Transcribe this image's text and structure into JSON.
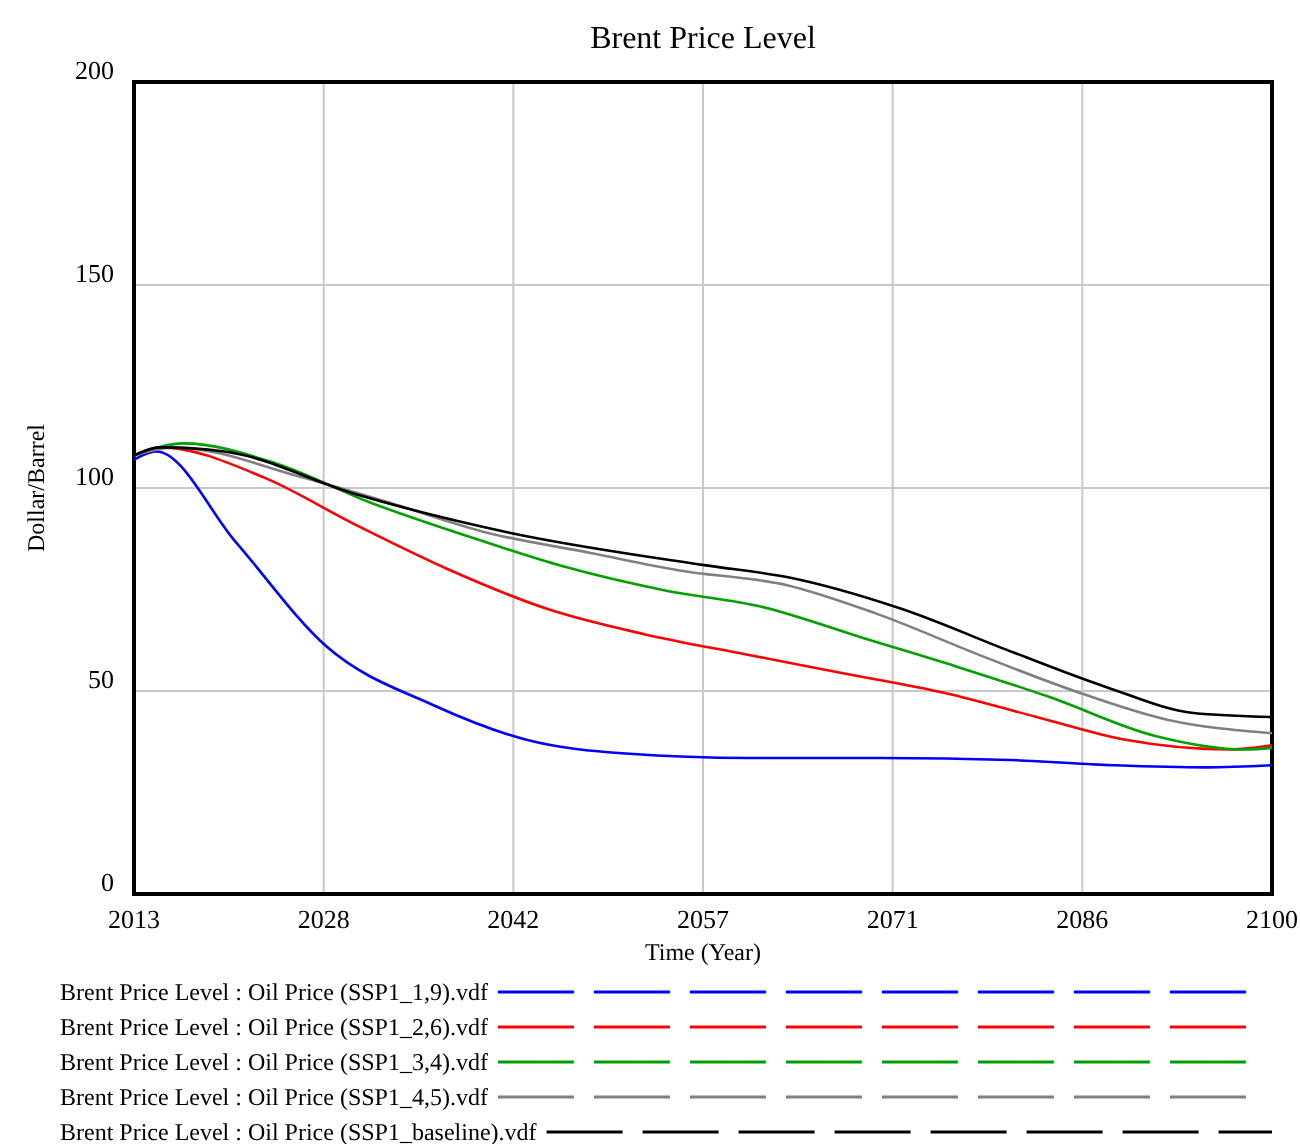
{
  "chart_data": {
    "type": "line",
    "title": "Brent Price Level",
    "xlabel": "Time (Year)",
    "ylabel": "Dollar/Barrel",
    "xlim": [
      2013,
      2100
    ],
    "ylim": [
      0,
      200
    ],
    "xticks": [
      2013,
      {
        "value": 2027.5,
        "label": "2028"
      },
      2042,
      {
        "value": 2056.5,
        "label": "2057"
      },
      2071,
      {
        "value": 2085.5,
        "label": "2086"
      },
      2100
    ],
    "yticks": [
      0,
      50,
      100,
      150,
      200
    ],
    "grid": true,
    "legend": "bottom",
    "line_style": "solid",
    "series": [
      {
        "name": "Brent Price Level : Oil Price (SSP1_1,9).vdf",
        "color": "#0000ff",
        "x": [
          2013,
          2014.7,
          2020.8,
          2027.7,
          2035.9,
          2043,
          2050.6,
          2060,
          2070,
          2080,
          2088,
          2095,
          2100
        ],
        "values": [
          107,
          109,
          86.6,
          61,
          46.5,
          38,
          34.6,
          33.5,
          33.5,
          33,
          31.7,
          31.2,
          31.7
        ]
      },
      {
        "name": "Brent Price Level : Oil Price (SSP1_2,6).vdf",
        "color": "#ff0000",
        "x": [
          2013,
          2015,
          2023,
          2029.9,
          2037,
          2044.8,
          2052,
          2059.8,
          2067,
          2075,
          2082,
          2088.8,
          2096.8,
          2100
        ],
        "values": [
          108,
          110,
          102.5,
          91,
          80,
          70,
          64,
          59,
          54.5,
          49.5,
          43.6,
          38,
          35.6,
          36.6
        ]
      },
      {
        "name": "Brent Price Level : Oil Price (SSP1_3,4).vdf",
        "color": "#00a000",
        "x": [
          2013,
          2016.8,
          2023.9,
          2031,
          2039,
          2045.8,
          2053.7,
          2060.9,
          2068.8,
          2075.9,
          2083,
          2091,
          2098,
          2100
        ],
        "values": [
          108,
          111,
          106,
          96.5,
          87.6,
          80.7,
          74.7,
          70.8,
          63,
          56,
          48.5,
          39,
          35.6,
          36
        ]
      },
      {
        "name": "Brent Price Level : Oil Price (SSP1_4,5).vdf",
        "color": "#808080",
        "x": [
          2013,
          2016,
          2026,
          2032.9,
          2040,
          2047.9,
          2054.7,
          2063,
          2069.8,
          2078,
          2084.9,
          2091.9,
          2100
        ],
        "values": [
          108,
          110,
          102.5,
          96,
          89,
          84,
          79.7,
          76,
          69,
          58.4,
          50,
          43,
          39.6
        ]
      },
      {
        "name": "Brent Price Level : Oil Price (SSP1_baseline).vdf",
        "color": "#000000",
        "x": [
          2013,
          2015,
          2019.9,
          2029.9,
          2041.7,
          2056.6,
          2063,
          2071.6,
          2080.3,
          2087.3,
          2094,
          2100
        ],
        "values": [
          108,
          110,
          109,
          98.5,
          89,
          81,
          78,
          70.3,
          59.4,
          51,
          44.6,
          43.6
        ]
      }
    ]
  }
}
